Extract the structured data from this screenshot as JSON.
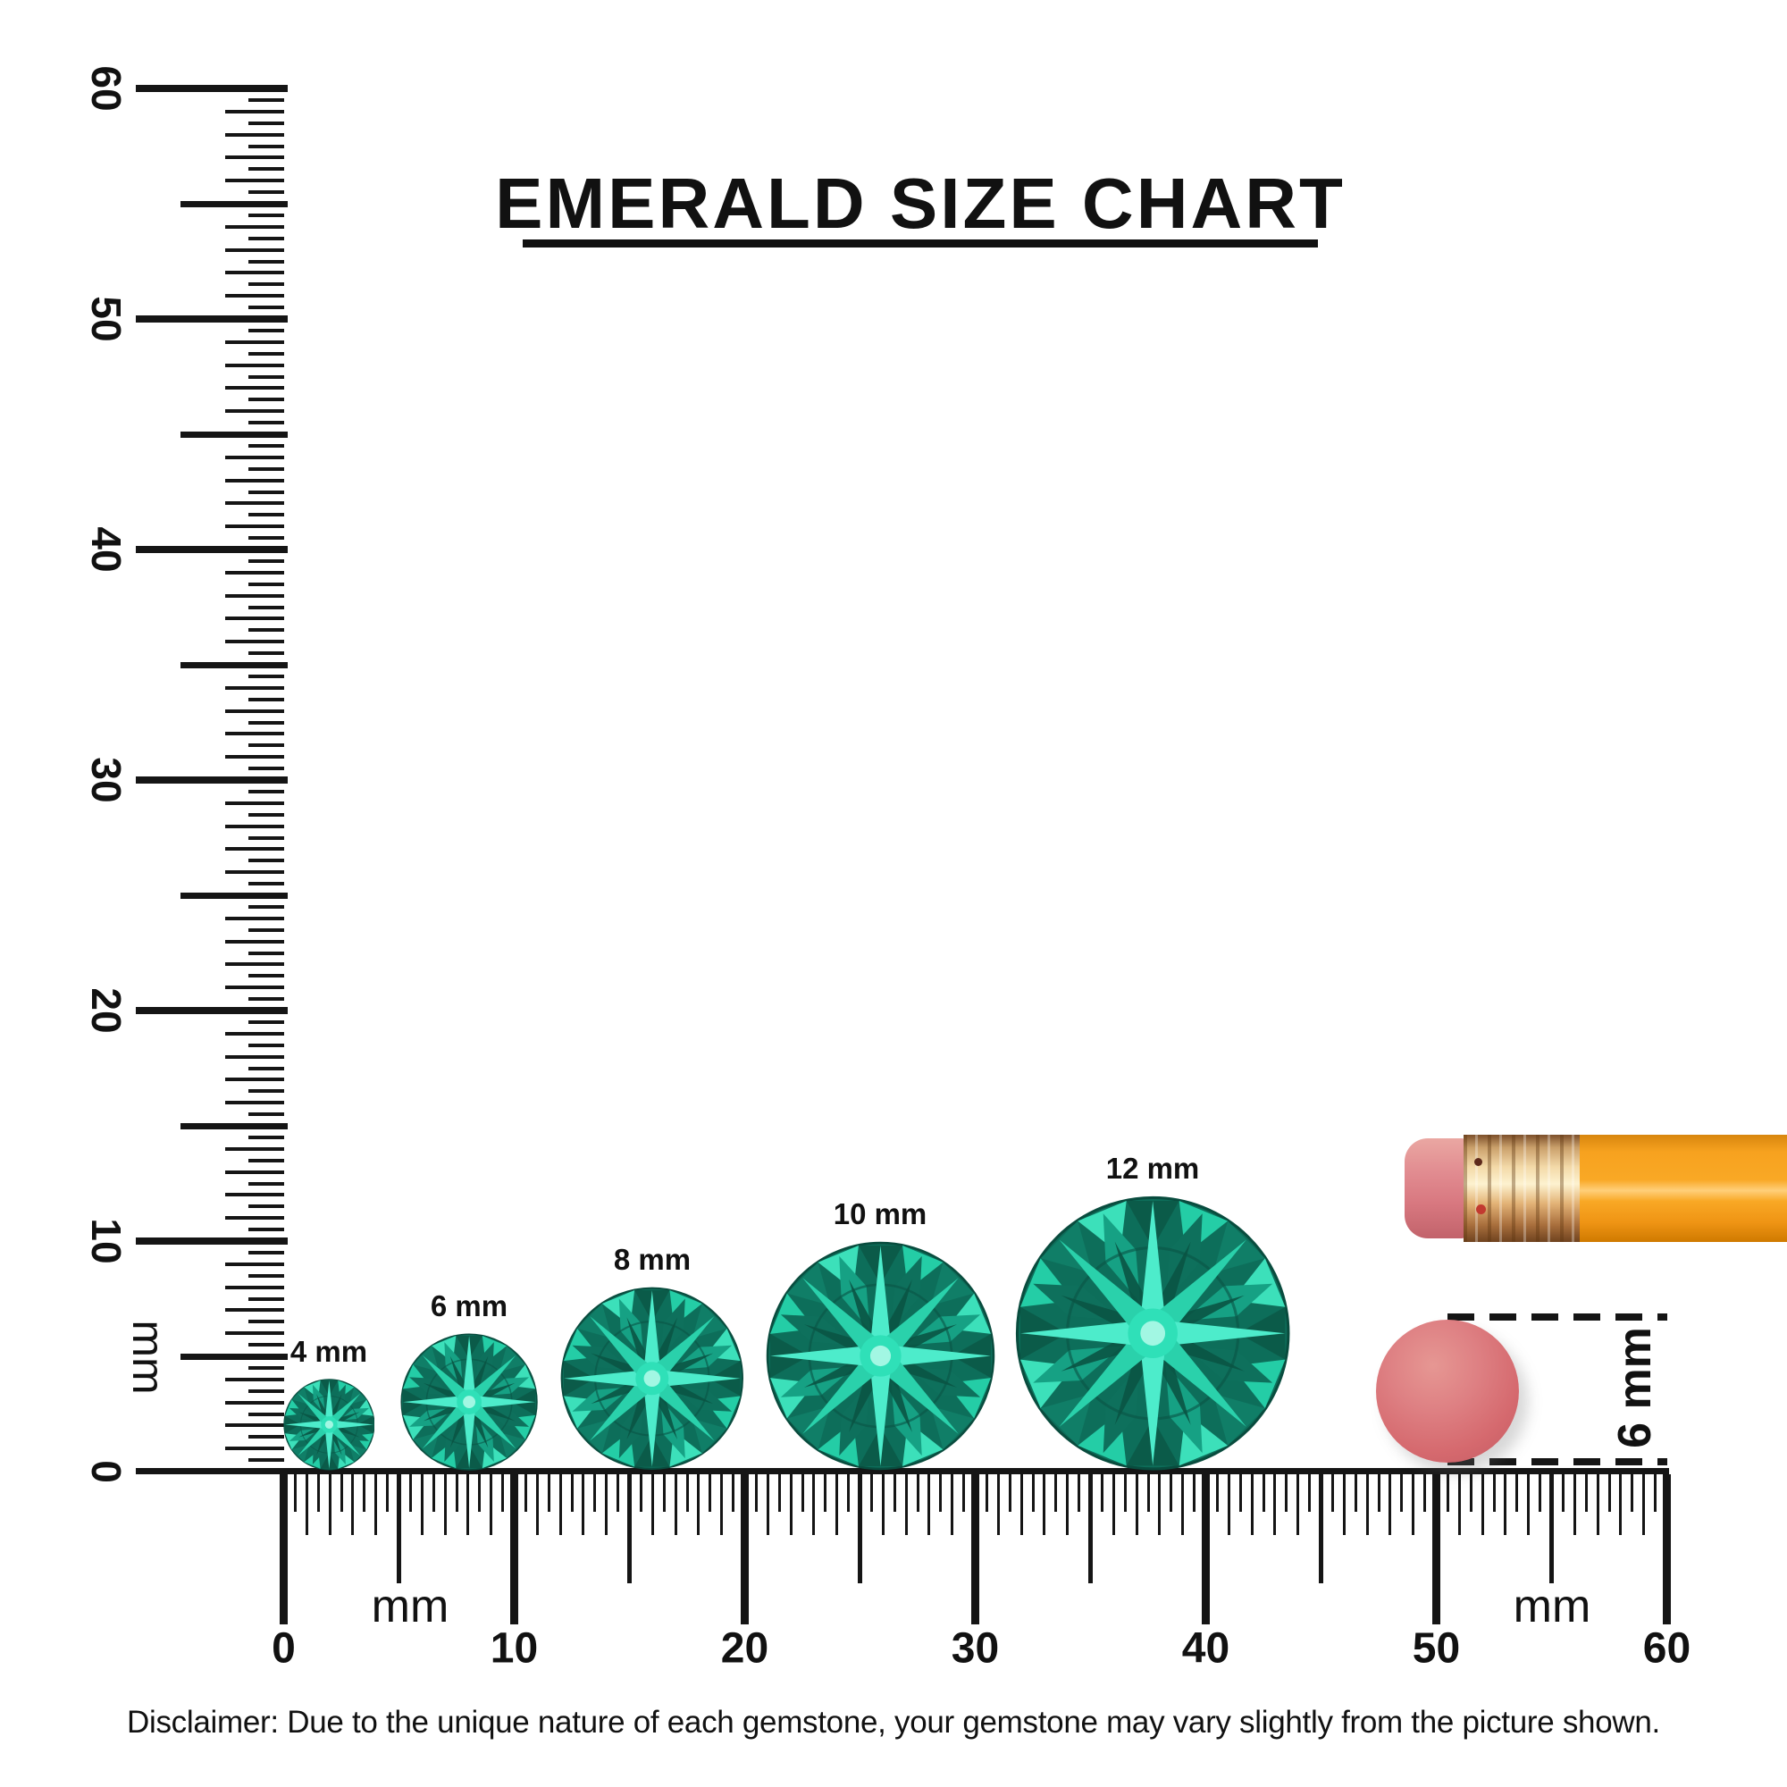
{
  "title": "EMERALD SIZE CHART",
  "vertical_ruler": {
    "unit": "mm",
    "tick_labels": [
      "0",
      "10",
      "20",
      "30",
      "40",
      "50",
      "60"
    ]
  },
  "horizontal_ruler": {
    "unit_left": "mm",
    "unit_right": "mm",
    "tick_labels": [
      "0",
      "10",
      "20",
      "30",
      "40",
      "50",
      "60"
    ]
  },
  "gems": [
    {
      "label": "4 mm",
      "mm": 4
    },
    {
      "label": "6 mm",
      "mm": 6
    },
    {
      "label": "8 mm",
      "mm": 8
    },
    {
      "label": "10 mm",
      "mm": 10
    },
    {
      "label": "12 mm",
      "mm": 12
    }
  ],
  "eraser_reference": {
    "label": "6 mm"
  },
  "disclaimer": "Disclaimer: Due to the unique nature of each gemstone, your gemstone may vary slightly from the picture shown.",
  "colors": {
    "ink": "#151515",
    "gem_base": "#0d6e5a",
    "gem_bright": "#3ce0ba",
    "gem_dark": "#0a5444",
    "eraser_pink": "#d5696e",
    "pencil_orange": "#f9a825",
    "ferrule_gold": "#e8bd7e"
  }
}
